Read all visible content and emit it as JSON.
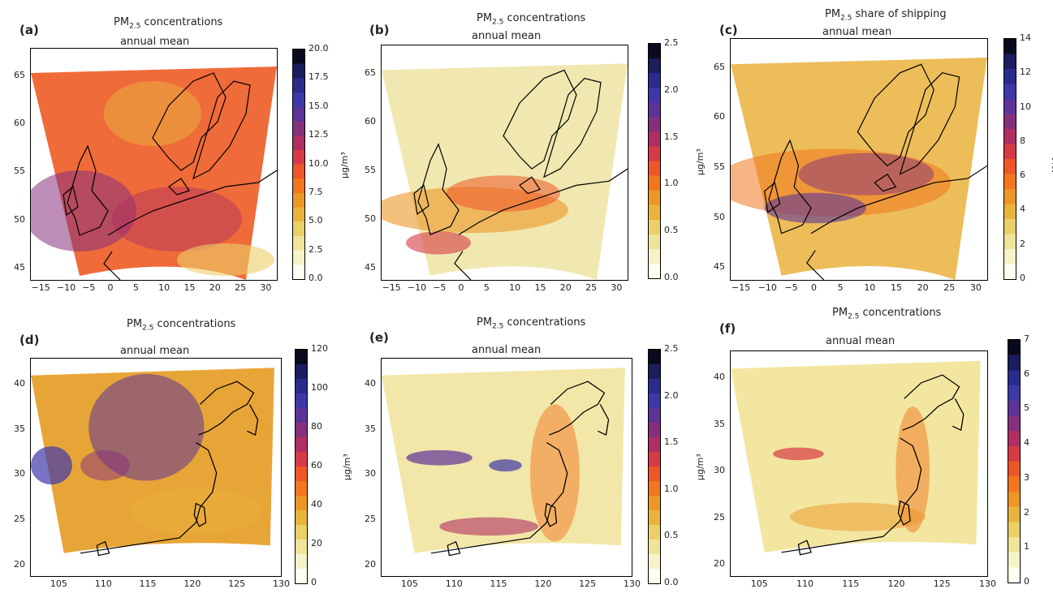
{
  "panels": [
    {
      "label": "(a)",
      "title_pre": "PM",
      "title_sub": "2.5",
      "title_post": " concentrations",
      "subtitle": "annual mean",
      "region": "europe",
      "xticks": [
        "−15",
        "−10",
        "−5",
        "0",
        "5",
        "10",
        "15",
        "20",
        "25",
        "30"
      ],
      "yticks": [
        "65",
        "60",
        "55",
        "50",
        "45"
      ],
      "colorbar": {
        "unit": "µg/m³",
        "ticks": [
          "20.0",
          "17.5",
          "15.0",
          "12.5",
          "10.0",
          "7.5",
          "5.0",
          "2.5",
          "0.0"
        ],
        "fill": "#f06b3a"
      }
    },
    {
      "label": "(b)",
      "title_pre": "PM",
      "title_sub": "2.5",
      "title_post": " concentrations",
      "subtitle": "annual mean",
      "region": "europe",
      "xticks": [
        "−15",
        "−10",
        "−5",
        "0",
        "5",
        "10",
        "15",
        "20",
        "25",
        "30"
      ],
      "yticks": [
        "65",
        "60",
        "55",
        "50",
        "45"
      ],
      "colorbar": {
        "unit": "µg/m³",
        "ticks": [
          "2.5",
          "2.0",
          "1.5",
          "1.0",
          "0.5",
          "0.0"
        ],
        "fill": "#f0e8b0"
      }
    },
    {
      "label": "(c)",
      "title_pre": "PM",
      "title_sub": "2.5",
      "title_post": " share of shipping",
      "subtitle": "annual mean",
      "region": "europe",
      "xticks": [
        "−15",
        "−10",
        "−5",
        "0",
        "5",
        "10",
        "15",
        "20",
        "25",
        "30"
      ],
      "yticks": [
        "65",
        "60",
        "55",
        "50",
        "45"
      ],
      "colorbar": {
        "unit": "[%]",
        "ticks": [
          "14",
          "12",
          "10",
          "8",
          "6",
          "4",
          "2",
          "0"
        ],
        "fill": "#edbd5a"
      }
    },
    {
      "label": "(d)",
      "title_pre": "PM",
      "title_sub": "2.5",
      "title_post": " concentrations",
      "subtitle": "annual mean",
      "region": "china",
      "xticks": [
        "105",
        "110",
        "115",
        "120",
        "125",
        "130"
      ],
      "yticks": [
        "40",
        "35",
        "30",
        "25",
        "20"
      ],
      "colorbar": {
        "unit": "µg/m³",
        "ticks": [
          "120",
          "100",
          "80",
          "60",
          "40",
          "20",
          "0"
        ],
        "fill": "#e8a537"
      }
    },
    {
      "label": "(e)",
      "title_pre": "PM",
      "title_sub": "2.5",
      "title_post": " concentrations",
      "subtitle": "annual mean",
      "region": "china",
      "xticks": [
        "105",
        "110",
        "115",
        "120",
        "125",
        "130"
      ],
      "yticks": [
        "40",
        "35",
        "30",
        "25",
        "20"
      ],
      "colorbar": {
        "unit": "µg/m³",
        "ticks": [
          "2.5",
          "2.0",
          "1.5",
          "1.0",
          "0.5",
          "0.0"
        ],
        "fill": "#f2e7a8"
      }
    },
    {
      "label": "(f)",
      "title_pre": "PM",
      "title_sub": "2.5",
      "title_post": " concentrations",
      "subtitle": "annual mean",
      "region": "china",
      "xticks": [
        "105",
        "110",
        "115",
        "120",
        "125",
        "130"
      ],
      "yticks": [
        "40",
        "35",
        "30",
        "25",
        "20"
      ],
      "colorbar": {
        "unit": "[%]",
        "ticks": [
          "7",
          "6",
          "5",
          "4",
          "3",
          "2",
          "1",
          "0"
        ],
        "fill": "#f3e6a0"
      }
    }
  ],
  "colormap": [
    "#fffff2",
    "#f6f3c8",
    "#efe49a",
    "#ebcf67",
    "#e8b43d",
    "#ec9626",
    "#f1761f",
    "#ee5628",
    "#d63b45",
    "#b02e62",
    "#86307c",
    "#5d3398",
    "#3e37a8",
    "#2a2c8c",
    "#1b1d5e",
    "#0a0a1e"
  ]
}
